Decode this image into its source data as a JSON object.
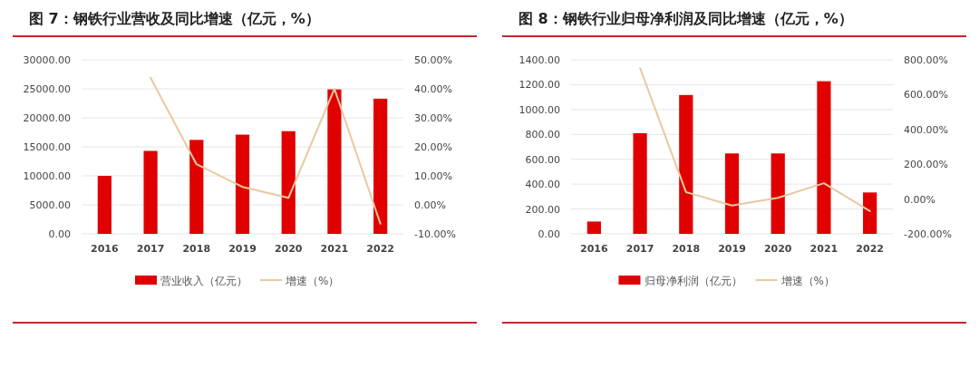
{
  "chart_data": [
    {
      "type": "bar",
      "title": "图 7：钢铁行业营收及同比增速（亿元，%）",
      "categories": [
        "2016",
        "2017",
        "2018",
        "2019",
        "2020",
        "2021",
        "2022"
      ],
      "series": [
        {
          "name": "营业收入（亿元）",
          "color": "#e00000",
          "values": [
            10000,
            14300,
            16200,
            17100,
            17700,
            24900,
            23300
          ]
        },
        {
          "name": "增速（%）",
          "type": "line",
          "axis": "y2",
          "color": "#e8c9a0",
          "values": [
            null,
            43.8,
            14.0,
            6.2,
            2.4,
            40.0,
            -6.5
          ]
        }
      ],
      "ylim": [
        0,
        30000
      ],
      "yticks": [
        {
          "value": 0,
          "label": "0.00"
        },
        {
          "value": 5000,
          "label": "5000.00"
        },
        {
          "value": 10000,
          "label": "10000.00"
        },
        {
          "value": 15000,
          "label": "15000.00"
        },
        {
          "value": 20000,
          "label": "20000.00"
        },
        {
          "value": 25000,
          "label": "25000.00"
        },
        {
          "value": 30000,
          "label": "30000.00"
        }
      ],
      "y2lim": [
        -10,
        50
      ],
      "y2ticks": [
        {
          "value": -10,
          "label": "-10.00%"
        },
        {
          "value": 0,
          "label": "0.00%"
        },
        {
          "value": 10,
          "label": "10.00%"
        },
        {
          "value": 20,
          "label": "20.00%"
        },
        {
          "value": 30,
          "label": "30.00%"
        },
        {
          "value": 40,
          "label": "40.00%"
        },
        {
          "value": 50,
          "label": "50.00%"
        }
      ],
      "grid": "y",
      "legend": "bottom"
    },
    {
      "type": "bar",
      "title": "图 8：钢铁行业归母净利润及同比增速（亿元，%）",
      "categories": [
        "2016",
        "2017",
        "2018",
        "2019",
        "2020",
        "2021",
        "2022"
      ],
      "series": [
        {
          "name": "归母净利润（亿元）",
          "color": "#e00000",
          "values": [
            99,
            810,
            1117,
            647,
            647,
            1228,
            333
          ]
        },
        {
          "name": "增速（%）",
          "type": "line",
          "axis": "y2",
          "color": "#e8c9a0",
          "values": [
            null,
            752,
            40,
            -37,
            7,
            91,
            -69
          ]
        }
      ],
      "ylim": [
        0,
        1400
      ],
      "yticks": [
        {
          "value": 0,
          "label": "0.00"
        },
        {
          "value": 200,
          "label": "200.00"
        },
        {
          "value": 400,
          "label": "400.00"
        },
        {
          "value": 600,
          "label": "600.00"
        },
        {
          "value": 800,
          "label": "800.00"
        },
        {
          "value": 1000,
          "label": "1000.00"
        },
        {
          "value": 1200,
          "label": "1200.00"
        },
        {
          "value": 1400,
          "label": "1400.00"
        }
      ],
      "y2lim": [
        -200,
        800
      ],
      "y2ticks": [
        {
          "value": -200,
          "label": "-200.00%"
        },
        {
          "value": 0,
          "label": "0.00%"
        },
        {
          "value": 200,
          "label": "200.00%"
        },
        {
          "value": 400,
          "label": "400.00%"
        },
        {
          "value": 600,
          "label": "600.00%"
        },
        {
          "value": 800,
          "label": "800.00%"
        }
      ],
      "grid": "y",
      "legend": "bottom"
    }
  ]
}
